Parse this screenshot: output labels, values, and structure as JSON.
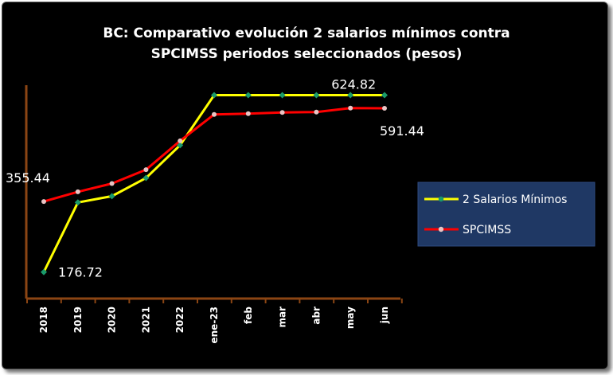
{
  "chart_data": {
    "type": "line",
    "title_lines": [
      "BC: Comparativo evolución 2 salarios mínimos contra",
      "SPCIMSS periodos seleccionados (pesos)"
    ],
    "categories": [
      "2018",
      "2019",
      "2020",
      "2021",
      "2022",
      "ene-23",
      "feb",
      "mar",
      "abr",
      "may",
      "jun"
    ],
    "ylim": [
      150,
      650
    ],
    "grid": false,
    "legend_position": "right",
    "series": [
      {
        "name": "2 Salarios Mínimos",
        "color": "#ffff00",
        "marker_color": "#1a9a6a",
        "values": [
          176.72,
          353,
          369,
          415,
          498,
          624.82,
          624.82,
          624.82,
          624.82,
          624.82,
          624.82
        ]
      },
      {
        "name": "SPCIMSS",
        "color": "#ff0000",
        "marker_color": "#e8c4c4",
        "values": [
          355.44,
          380,
          401,
          436,
          509,
          576,
          578,
          581,
          582,
          592,
          591.44
        ]
      }
    ],
    "data_labels": [
      {
        "series": 1,
        "index": 0,
        "text": "355.44",
        "position": "above-left"
      },
      {
        "series": 0,
        "index": 0,
        "text": "176.72",
        "position": "right"
      },
      {
        "series": 0,
        "index": 9,
        "text": "624.82",
        "position": "above"
      },
      {
        "series": 1,
        "index": 10,
        "text": "591.44",
        "position": "below"
      }
    ],
    "colors": {
      "background": "#000000",
      "axis": "#8b4513",
      "legend_background": "#1f3864",
      "text": "#ffffff"
    }
  }
}
